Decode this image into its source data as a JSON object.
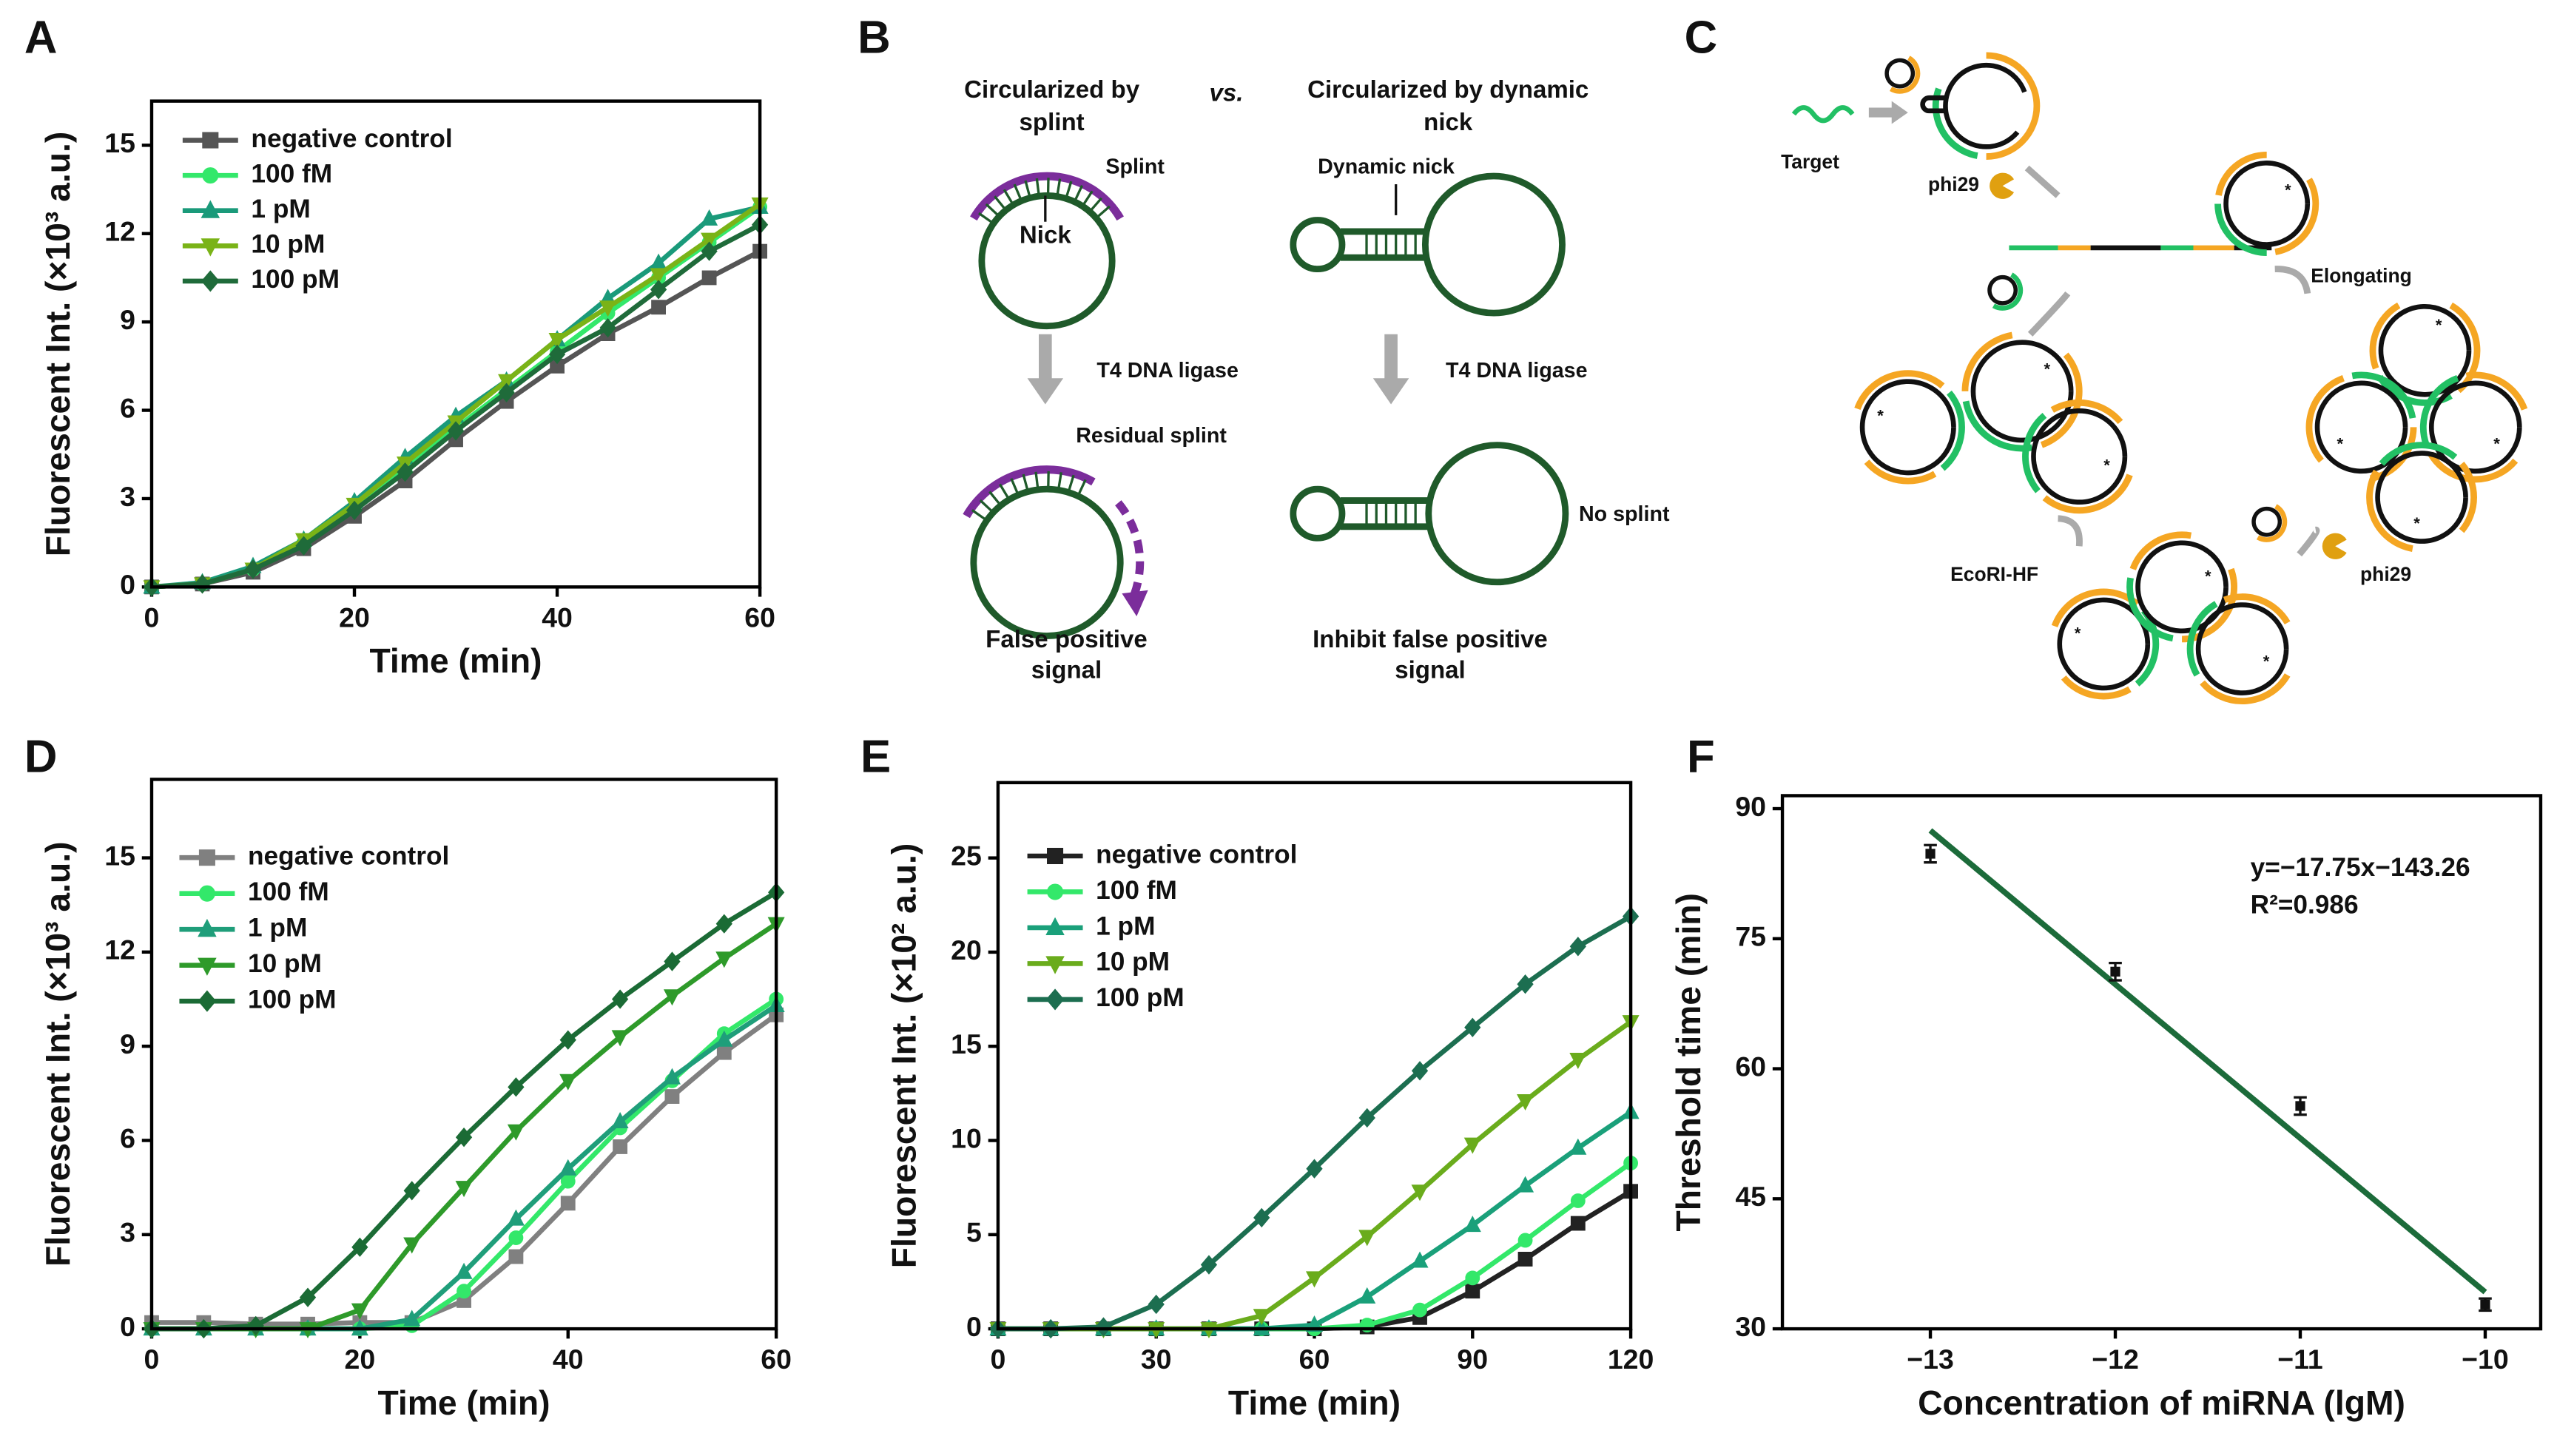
{
  "chart_data": [
    {
      "panel": "A",
      "type": "line",
      "xlabel": "Time (min)",
      "ylabel": "Fluorescent Int. (×10³ a.u.)",
      "xlim": [
        0,
        60
      ],
      "ylim": [
        0,
        16.5
      ],
      "xticks": [
        0,
        20,
        40,
        60
      ],
      "yticks": [
        0,
        3,
        6,
        9,
        12,
        15
      ],
      "x": [
        0,
        5,
        10,
        15,
        20,
        25,
        30,
        35,
        40,
        45,
        50,
        55,
        60
      ],
      "legend": "upper left",
      "series": [
        {
          "name": "negative control",
          "color": "#555555",
          "marker": "square",
          "values": [
            0,
            0.1,
            0.5,
            1.3,
            2.4,
            3.6,
            5.0,
            6.3,
            7.5,
            8.6,
            9.5,
            10.5,
            11.4
          ]
        },
        {
          "name": "100 fM",
          "color": "#33e86a",
          "marker": "circle",
          "values": [
            0,
            0.1,
            0.6,
            1.5,
            2.7,
            4.0,
            5.4,
            6.7,
            8.0,
            9.3,
            10.5,
            11.7,
            12.9
          ]
        },
        {
          "name": "1 pM",
          "color": "#1a9a7a",
          "marker": "triangle-up",
          "values": [
            0,
            0.15,
            0.7,
            1.6,
            2.9,
            4.4,
            5.8,
            7.0,
            8.4,
            9.8,
            11.0,
            12.5,
            12.9
          ]
        },
        {
          "name": "10 pM",
          "color": "#7ab317",
          "marker": "triangle-down",
          "values": [
            0,
            0.1,
            0.6,
            1.6,
            2.8,
            4.2,
            5.6,
            7.0,
            8.4,
            9.5,
            10.6,
            11.8,
            13.0
          ]
        },
        {
          "name": "100 pM",
          "color": "#1f6b3a",
          "marker": "diamond",
          "values": [
            0,
            0.1,
            0.6,
            1.4,
            2.6,
            3.9,
            5.3,
            6.6,
            7.9,
            8.8,
            10.1,
            11.4,
            12.3
          ]
        }
      ]
    },
    {
      "panel": "D",
      "type": "line",
      "xlabel": "Time (min)",
      "ylabel": "Fluorescent Int. (×10³ a.u.)",
      "xlim": [
        0,
        60
      ],
      "ylim": [
        0,
        17.5
      ],
      "xticks": [
        0,
        20,
        40,
        60
      ],
      "yticks": [
        0,
        3,
        6,
        9,
        12,
        15
      ],
      "x": [
        0,
        5,
        10,
        15,
        20,
        25,
        30,
        35,
        40,
        45,
        50,
        55,
        60
      ],
      "legend": "upper left",
      "series": [
        {
          "name": "negative control",
          "color": "#808080",
          "marker": "square",
          "values": [
            0.2,
            0.2,
            0.15,
            0.15,
            0.2,
            0.2,
            0.9,
            2.3,
            4.0,
            5.8,
            7.4,
            8.8,
            10.0
          ]
        },
        {
          "name": "100 fM",
          "color": "#33e86a",
          "marker": "circle",
          "values": [
            0,
            0,
            0,
            0,
            0,
            0.1,
            1.2,
            2.9,
            4.7,
            6.4,
            7.9,
            9.4,
            10.5
          ]
        },
        {
          "name": "1 pM",
          "color": "#1f9e7a",
          "marker": "triangle-up",
          "values": [
            0,
            0,
            0,
            0,
            0,
            0.3,
            1.8,
            3.5,
            5.1,
            6.6,
            8.0,
            9.2,
            10.3
          ]
        },
        {
          "name": "10 pM",
          "color": "#2e9a2a",
          "marker": "triangle-down",
          "values": [
            0,
            0,
            0,
            0,
            0.6,
            2.7,
            4.5,
            6.3,
            7.9,
            9.3,
            10.6,
            11.8,
            12.9
          ]
        },
        {
          "name": "100 pM",
          "color": "#1b6b35",
          "marker": "diamond",
          "values": [
            0,
            0,
            0.1,
            1.0,
            2.6,
            4.4,
            6.1,
            7.7,
            9.2,
            10.5,
            11.7,
            12.9,
            13.9
          ]
        }
      ]
    },
    {
      "panel": "E",
      "type": "line",
      "xlabel": "Time (min)",
      "ylabel": "Fluorescent Int. (×10² a.u.)",
      "xlim": [
        0,
        120
      ],
      "ylim": [
        0,
        29
      ],
      "xticks": [
        0,
        30,
        60,
        90,
        120
      ],
      "yticks": [
        0,
        5,
        10,
        15,
        20,
        25
      ],
      "x": [
        0,
        10,
        20,
        30,
        40,
        50,
        60,
        70,
        80,
        90,
        100,
        110,
        120
      ],
      "legend": "upper left",
      "series": [
        {
          "name": "negative control",
          "color": "#222222",
          "marker": "square",
          "values": [
            0,
            0,
            0,
            0,
            0,
            0,
            0,
            0.1,
            0.6,
            2.0,
            3.7,
            5.6,
            7.3
          ]
        },
        {
          "name": "100 fM",
          "color": "#33e86a",
          "marker": "circle",
          "values": [
            0,
            0,
            0,
            0,
            0,
            0,
            0,
            0.2,
            1.0,
            2.7,
            4.7,
            6.8,
            8.8
          ]
        },
        {
          "name": "1 pM",
          "color": "#1aa07a",
          "marker": "triangle-up",
          "values": [
            0,
            0,
            0,
            0,
            0,
            0,
            0.2,
            1.7,
            3.6,
            5.5,
            7.6,
            9.6,
            11.5
          ]
        },
        {
          "name": "10 pM",
          "color": "#6aac1c",
          "marker": "triangle-down",
          "values": [
            0,
            0,
            0,
            0,
            0,
            0.7,
            2.7,
            4.9,
            7.3,
            9.8,
            12.1,
            14.3,
            16.3
          ]
        },
        {
          "name": "100 pM",
          "color": "#1c6e50",
          "marker": "diamond",
          "values": [
            0,
            0,
            0.1,
            1.3,
            3.4,
            5.9,
            8.5,
            11.2,
            13.7,
            16.0,
            18.3,
            20.3,
            21.9
          ]
        }
      ]
    },
    {
      "panel": "F",
      "type": "scatter",
      "xlabel": "Concentration of miRNA (lgM)",
      "ylabel": "Threshold time (min)",
      "xlim": [
        -13.8,
        -9.7
      ],
      "ylim": [
        30,
        91.5
      ],
      "xticks": [
        {
          "value": -13,
          "label": "−13"
        },
        {
          "value": -12,
          "label": "−12"
        },
        {
          "value": -11,
          "label": "−11"
        },
        {
          "value": -10,
          "label": "−10"
        }
      ],
      "yticks": [
        30,
        45,
        60,
        75,
        90
      ],
      "x": [
        -13,
        -12,
        -11,
        -10
      ],
      "values": [
        84.8,
        71.2,
        55.7,
        32.8
      ],
      "errors": [
        1.0,
        1.0,
        1.0,
        0.7
      ],
      "color": "#111111",
      "fit": {
        "slope": -17.75,
        "intercept": -143.26,
        "x": [
          -13,
          -10
        ],
        "color": "#1c6b3a"
      },
      "annotations": [
        "y=−17.75x−143.26",
        "R²=0.986"
      ]
    }
  ],
  "diagrams": [
    {
      "panel": "B",
      "texts": [
        "Circularized by",
        "splint",
        "vs.",
        "Circularized by dynamic",
        "nick",
        "Splint",
        "Nick",
        "Dynamic nick",
        "T4 DNA ligase",
        "T4 DNA ligase",
        "Residual splint",
        "No splint",
        "False positive",
        "signal",
        "Inhibit false positive",
        "signal"
      ]
    },
    {
      "panel": "C",
      "texts": [
        "Target",
        "phi29",
        "Elongating",
        "EcoRI-HF",
        "phi29"
      ]
    }
  ]
}
